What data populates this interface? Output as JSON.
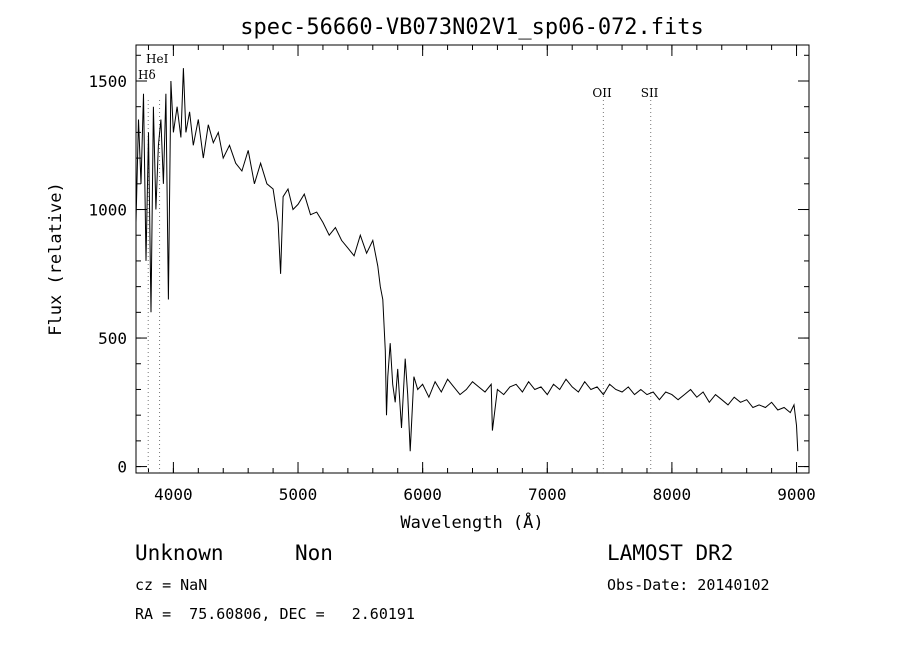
{
  "chart_data": {
    "type": "line",
    "title": "spec-56660-VB073N02V1_sp06-072.fits",
    "xlabel": "Wavelength (Å)",
    "ylabel": "Flux (relative)",
    "xlim": [
      3700,
      9100
    ],
    "ylim": [
      -25,
      1640
    ],
    "x_ticks": [
      {
        "value": 4000,
        "label": "4000"
      },
      {
        "value": 5000,
        "label": "5000"
      },
      {
        "value": 6000,
        "label": "6000"
      },
      {
        "value": 7000,
        "label": "7000"
      },
      {
        "value": 8000,
        "label": "8000"
      },
      {
        "value": 9000,
        "label": "9000"
      }
    ],
    "y_ticks": [
      {
        "value": 0,
        "label": "0"
      },
      {
        "value": 500,
        "label": "500"
      },
      {
        "value": 1000,
        "label": "1000"
      },
      {
        "value": 1500,
        "label": "1500"
      }
    ],
    "x_minor_step": 200,
    "y_minor_step": 100,
    "lines": [
      {
        "label": "HeI",
        "wavelength": 3889
      },
      {
        "label": "Hδ",
        "wavelength": 3798
      },
      {
        "label": "OII",
        "wavelength": 7450
      },
      {
        "label": "SII",
        "wavelength": 7830
      }
    ],
    "series": [
      {
        "x": [
          3700,
          3720,
          3740,
          3760,
          3780,
          3800,
          3820,
          3840,
          3860,
          3880,
          3900,
          3920,
          3940,
          3960,
          3980,
          4000,
          4030,
          4060,
          4080,
          4100,
          4130,
          4160,
          4200,
          4240,
          4280,
          4320,
          4360,
          4400,
          4450,
          4500,
          4550,
          4600,
          4650,
          4700,
          4750,
          4800,
          4840,
          4860,
          4880,
          4920,
          4960,
          5000,
          5050,
          5100,
          5150,
          5200,
          5250,
          5300,
          5350,
          5400,
          5450,
          5500,
          5550,
          5600,
          5640,
          5660,
          5680,
          5700,
          5710,
          5720,
          5740,
          5760,
          5780,
          5800,
          5830,
          5860,
          5880,
          5900,
          5930,
          5960,
          6000,
          6050,
          6100,
          6150,
          6200,
          6250,
          6300,
          6350,
          6400,
          6450,
          6500,
          6550,
          6560,
          6600,
          6650,
          6700,
          6750,
          6800,
          6850,
          6900,
          6950,
          7000,
          7050,
          7100,
          7150,
          7200,
          7250,
          7300,
          7350,
          7400,
          7450,
          7500,
          7550,
          7600,
          7650,
          7700,
          7750,
          7800,
          7850,
          7900,
          7950,
          8000,
          8050,
          8100,
          8150,
          8200,
          8250,
          8300,
          8350,
          8400,
          8450,
          8500,
          8550,
          8600,
          8650,
          8700,
          8750,
          8800,
          8850,
          8900,
          8950,
          8980,
          9000,
          9010
        ],
        "y": [
          950,
          1350,
          1100,
          1450,
          800,
          1300,
          600,
          1400,
          1000,
          1250,
          1350,
          1100,
          1450,
          650,
          1500,
          1300,
          1400,
          1280,
          1550,
          1300,
          1380,
          1250,
          1350,
          1200,
          1330,
          1260,
          1300,
          1200,
          1250,
          1180,
          1150,
          1230,
          1100,
          1180,
          1100,
          1080,
          950,
          750,
          1050,
          1080,
          1000,
          1020,
          1060,
          980,
          990,
          950,
          900,
          930,
          880,
          850,
          820,
          900,
          830,
          880,
          780,
          700,
          650,
          450,
          200,
          350,
          480,
          320,
          250,
          380,
          150,
          420,
          280,
          60,
          350,
          300,
          320,
          270,
          330,
          290,
          340,
          310,
          280,
          300,
          330,
          310,
          290,
          320,
          140,
          300,
          280,
          310,
          320,
          290,
          330,
          300,
          310,
          280,
          320,
          300,
          340,
          310,
          290,
          330,
          300,
          310,
          280,
          320,
          300,
          290,
          310,
          280,
          300,
          280,
          290,
          260,
          290,
          280,
          260,
          280,
          300,
          270,
          290,
          250,
          280,
          260,
          240,
          270,
          250,
          260,
          230,
          240,
          230,
          250,
          220,
          230,
          210,
          240,
          160,
          60
        ]
      }
    ],
    "footer": {
      "class": "Unknown",
      "subclass": "Non",
      "survey": "LAMOST DR2",
      "cz": "cz = NaN",
      "obs_date": "Obs-Date: 20140102",
      "radec": "RA =  75.60806, DEC =   2.60191"
    }
  }
}
